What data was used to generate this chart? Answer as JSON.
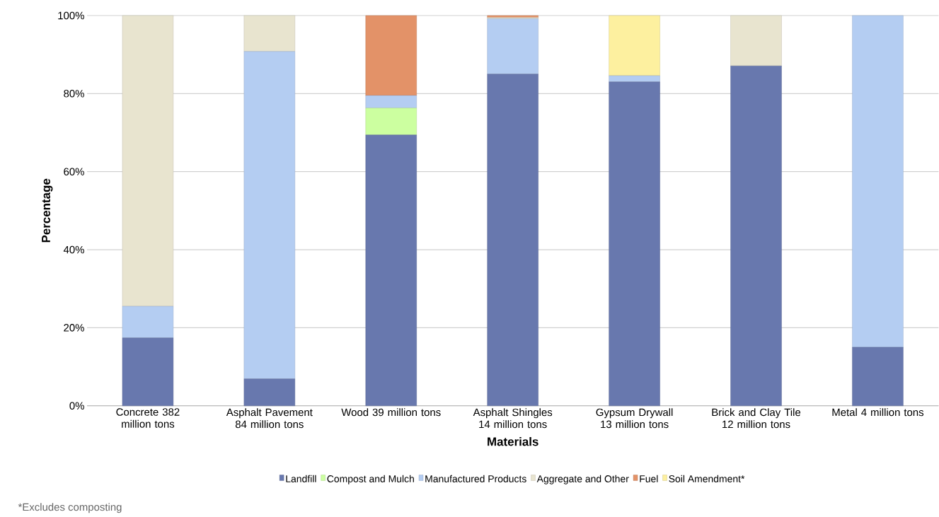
{
  "chart_data": {
    "type": "bar",
    "stacked": true,
    "xlabel": "Materials",
    "ylabel": "Percentage",
    "categories": [
      "Concrete 382 million tons",
      "Asphalt Pavement 84 million tons",
      "Wood 39 million tons",
      "Asphalt Shingles 14 million tons",
      "Gypsum Drywall 13 million tons",
      "Brick and Clay Tile 12 million tons",
      "Metal 4 million tons"
    ],
    "series": [
      {
        "name": "Landfill",
        "color": "#6878ae",
        "values": [
          17.4,
          6.9,
          69.4,
          85.0,
          83.0,
          87.1,
          15.0
        ]
      },
      {
        "name": "Compost and Mulch",
        "color": "#ccffa0",
        "values": [
          0,
          0,
          6.9,
          0,
          0,
          0,
          0
        ]
      },
      {
        "name": "Manufactured Products",
        "color": "#b4cdf2",
        "values": [
          8.1,
          83.9,
          3.2,
          14.2,
          1.6,
          0,
          85.0
        ]
      },
      {
        "name": "Aggregate and Other",
        "color": "#e8e4cf",
        "values": [
          74.5,
          9.2,
          0,
          0.3,
          0,
          12.9,
          0
        ]
      },
      {
        "name": "Fuel",
        "color": "#e39268",
        "values": [
          0,
          0,
          20.5,
          0.5,
          0,
          0,
          0
        ]
      },
      {
        "name": "Soil Amendment*",
        "color": "#fdf09f",
        "values": [
          0,
          0,
          0,
          0,
          15.4,
          0,
          0
        ]
      }
    ],
    "ylim": [
      0,
      100
    ],
    "yticks": [
      {
        "value": 0,
        "label": "0%"
      },
      {
        "value": 20,
        "label": "20%"
      },
      {
        "value": 40,
        "label": "40%"
      },
      {
        "value": 60,
        "label": "60%"
      },
      {
        "value": 80,
        "label": "80%"
      },
      {
        "value": 100,
        "label": "100%"
      }
    ],
    "grid": "y",
    "legend": "bottom",
    "annotations": [
      "*Excludes composting"
    ]
  }
}
